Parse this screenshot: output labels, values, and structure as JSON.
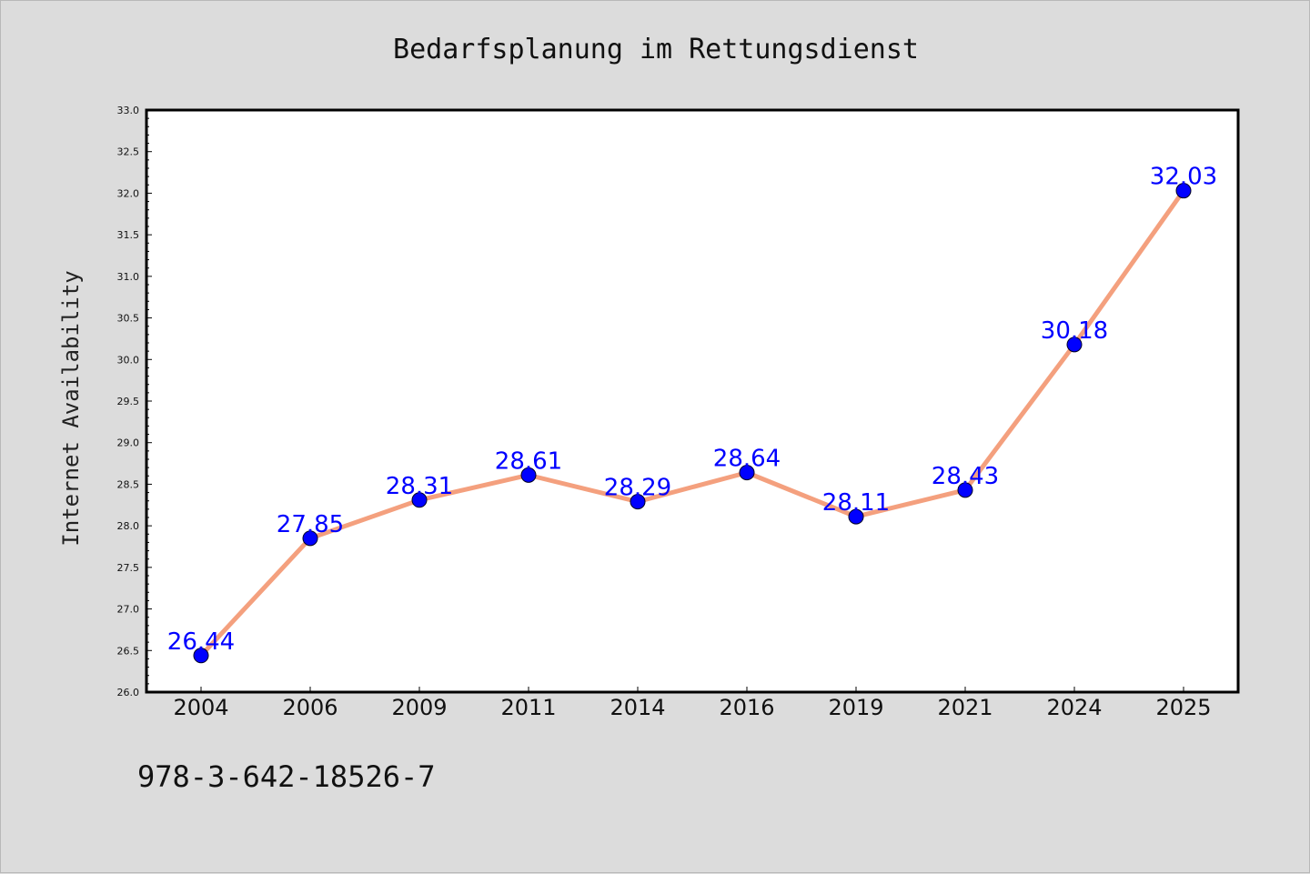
{
  "chart_data": {
    "type": "line",
    "title": "Bedarfsplanung im Rettungsdienst",
    "xlabel": "",
    "ylabel": "Internet Availability",
    "categories": [
      "2004",
      "2006",
      "2009",
      "2011",
      "2014",
      "2016",
      "2019",
      "2021",
      "2024",
      "2025"
    ],
    "series": [
      {
        "values": [
          26.44,
          27.85,
          28.31,
          28.61,
          28.29,
          28.64,
          28.11,
          28.43,
          30.18,
          32.03
        ],
        "labels": [
          "26.44",
          "27.85",
          "28.31",
          "28.61",
          "28.29",
          "28.64",
          "28.11",
          "28.43",
          "30.18",
          "32.03"
        ],
        "line_color": "#f4a07e",
        "marker_color": "#0000ff"
      }
    ],
    "ylim": [
      26.0,
      33.0
    ],
    "yticks": [
      "26.0",
      "26.5",
      "27.0",
      "27.5",
      "28.0",
      "28.5",
      "29.0",
      "29.5",
      "30.0",
      "30.5",
      "31.0",
      "31.5",
      "32.0",
      "32.5",
      "33.0"
    ],
    "grid": false,
    "background": "#dcdcdc",
    "plot_background": "#ffffff"
  },
  "annotation": "978-3-642-18526-7"
}
